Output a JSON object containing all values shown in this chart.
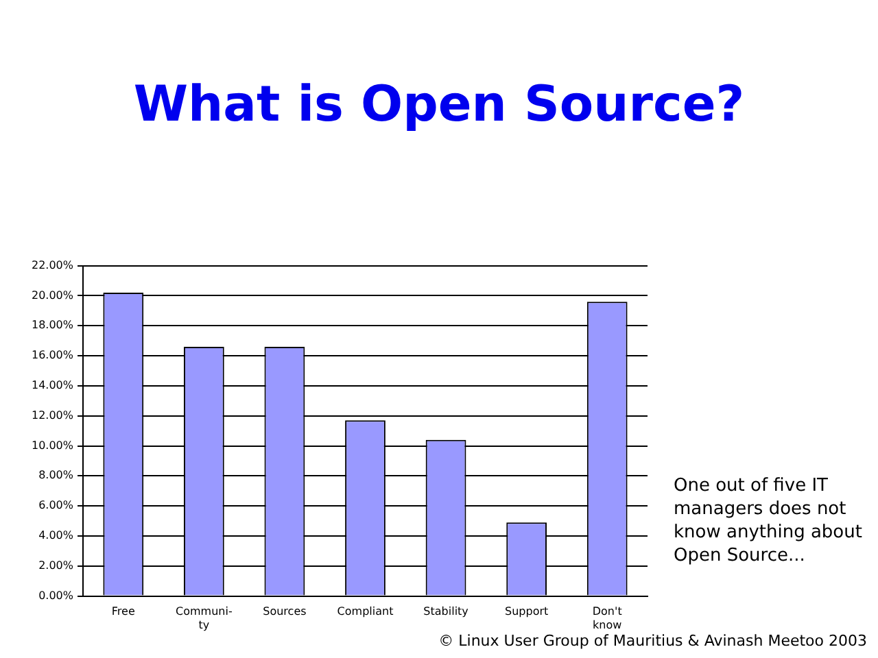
{
  "chart_data": {
    "type": "bar",
    "title": "What is Open Source?",
    "categories": [
      "Free",
      "Communi-\nty",
      "Sources",
      "Compliant",
      "Stability",
      "Support",
      "Don't\nknow"
    ],
    "values": [
      20.2,
      16.6,
      16.6,
      11.7,
      10.4,
      4.9,
      19.6
    ],
    "color": "#9999ff",
    "ylim": [
      0,
      22
    ],
    "yticks": [
      {
        "value": 0,
        "label": "0.00%"
      },
      {
        "value": 2,
        "label": "2.00%"
      },
      {
        "value": 4,
        "label": "4.00%"
      },
      {
        "value": 6,
        "label": "6.00%"
      },
      {
        "value": 8,
        "label": "8.00%"
      },
      {
        "value": 10,
        "label": "10.00%"
      },
      {
        "value": 12,
        "label": "12.00%"
      },
      {
        "value": 14,
        "label": "14.00%"
      },
      {
        "value": 16,
        "label": "16.00%"
      },
      {
        "value": 18,
        "label": "18.00%"
      },
      {
        "value": 20,
        "label": "20.00%"
      },
      {
        "value": 22,
        "label": "22.00%"
      }
    ],
    "grid": "y",
    "legend": false,
    "annotations": [
      "One out of five IT managers does not know anything about Open Source...",
      "© Linux User Group of Mauritius & Avinash Meetoo 2003"
    ]
  }
}
